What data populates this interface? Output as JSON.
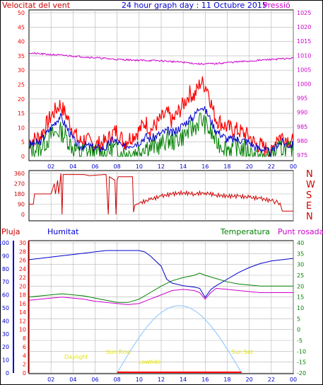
{
  "title": "24 hour graph day : 11 Octubre 2015",
  "colors": {
    "red": "#ff0000",
    "blue": "#0000cc",
    "green": "#008000",
    "magenta": "#cc00cc",
    "darkred": "#cc0000",
    "lightblue": "#99ccff",
    "yellow": "#e6e600",
    "grid": "#b4b4b4"
  },
  "chart_data": [
    {
      "type": "line",
      "name": "wind",
      "left_label": "Velocitat del vent",
      "right_label": "Pressió",
      "x_ticks": [
        "02",
        "04",
        "06",
        "08",
        "10",
        "12",
        "14",
        "16",
        "18",
        "20",
        "22",
        "00"
      ],
      "yleft_ticks": [
        "50",
        "45",
        "40",
        "35",
        "30",
        "25",
        "20",
        "15",
        "10",
        "5",
        "0"
      ],
      "yleft_range": [
        0,
        50
      ],
      "yright_ticks": [
        "1025",
        "1020",
        "1015",
        "1010",
        "1005",
        "1000",
        "995",
        "990",
        "985",
        "980",
        "975"
      ],
      "yright_range": [
        973,
        1026
      ],
      "x_range_hours": [
        0,
        24
      ],
      "gust_points": [
        [
          0,
          5
        ],
        [
          1,
          7
        ],
        [
          2,
          14
        ],
        [
          2.8,
          18
        ],
        [
          3.3,
          15
        ],
        [
          4,
          9
        ],
        [
          4.6,
          5
        ],
        [
          5,
          6
        ],
        [
          6,
          4
        ],
        [
          7,
          5
        ],
        [
          7.6,
          8
        ],
        [
          8,
          9
        ],
        [
          8.6,
          5
        ],
        [
          9,
          6
        ],
        [
          10,
          9
        ],
        [
          10.6,
          12
        ],
        [
          11,
          9
        ],
        [
          12,
          13
        ],
        [
          12.6,
          15
        ],
        [
          13,
          12
        ],
        [
          14,
          18
        ],
        [
          14.6,
          22
        ],
        [
          15,
          21
        ],
        [
          15.6,
          26
        ],
        [
          16.2,
          24
        ],
        [
          16.7,
          16
        ],
        [
          17,
          13
        ],
        [
          18,
          10
        ],
        [
          19,
          9
        ],
        [
          20,
          7
        ],
        [
          20.6,
          4
        ],
        [
          21,
          4
        ],
        [
          22,
          1
        ],
        [
          22.5,
          7
        ],
        [
          23,
          7
        ],
        [
          23.5,
          6
        ],
        [
          24,
          5
        ]
      ],
      "avg_points": [
        [
          0,
          4
        ],
        [
          1,
          5
        ],
        [
          2,
          10
        ],
        [
          2.8,
          14
        ],
        [
          3.3,
          11
        ],
        [
          4,
          6
        ],
        [
          4.6,
          3
        ],
        [
          5,
          4
        ],
        [
          6,
          3
        ],
        [
          7,
          3
        ],
        [
          7.6,
          6
        ],
        [
          8,
          5
        ],
        [
          8.6,
          3
        ],
        [
          9,
          4
        ],
        [
          10,
          5
        ],
        [
          10.6,
          7
        ],
        [
          11,
          6
        ],
        [
          12,
          8
        ],
        [
          12.6,
          9
        ],
        [
          13,
          8
        ],
        [
          14,
          11
        ],
        [
          14.6,
          13
        ],
        [
          15,
          14
        ],
        [
          15.6,
          18
        ],
        [
          16.2,
          15
        ],
        [
          16.7,
          11
        ],
        [
          17,
          9
        ],
        [
          18,
          6
        ],
        [
          19,
          6
        ],
        [
          20,
          5
        ],
        [
          20.6,
          3
        ],
        [
          21,
          3
        ],
        [
          22,
          1
        ],
        [
          22.5,
          4
        ],
        [
          23,
          5
        ],
        [
          23.5,
          4
        ],
        [
          24,
          4
        ]
      ],
      "low_points": [
        [
          0,
          2
        ],
        [
          1,
          3
        ],
        [
          2,
          7
        ],
        [
          2.8,
          9
        ],
        [
          3.3,
          7
        ],
        [
          4,
          3
        ],
        [
          4.6,
          1
        ],
        [
          5,
          2
        ],
        [
          6,
          1
        ],
        [
          7,
          1
        ],
        [
          7.6,
          3
        ],
        [
          8,
          2
        ],
        [
          8.6,
          1
        ],
        [
          9,
          1
        ],
        [
          10,
          2
        ],
        [
          10.6,
          4
        ],
        [
          11,
          3
        ],
        [
          12,
          4
        ],
        [
          12.6,
          6
        ],
        [
          13,
          5
        ],
        [
          14,
          7
        ],
        [
          14.6,
          9
        ],
        [
          15,
          10
        ],
        [
          15.6,
          13
        ],
        [
          16.2,
          10
        ],
        [
          16.7,
          7
        ],
        [
          17,
          5
        ],
        [
          18,
          3
        ],
        [
          19,
          3
        ],
        [
          20,
          2
        ],
        [
          20.6,
          0
        ],
        [
          21,
          0
        ],
        [
          22,
          0
        ],
        [
          22.5,
          2
        ],
        [
          23,
          3
        ],
        [
          23.5,
          2
        ],
        [
          24,
          2
        ]
      ],
      "pressure_points": [
        [
          0,
          1010.8
        ],
        [
          2,
          1010.3
        ],
        [
          4,
          1009.8
        ],
        [
          6,
          1009.2
        ],
        [
          8,
          1008.6
        ],
        [
          10,
          1008.3
        ],
        [
          12,
          1008.1
        ],
        [
          14,
          1007.6
        ],
        [
          15.5,
          1007.0
        ],
        [
          17,
          1007.1
        ],
        [
          18,
          1007.5
        ],
        [
          20,
          1008.0
        ],
        [
          22,
          1008.6
        ],
        [
          24,
          1009.0
        ]
      ]
    },
    {
      "type": "line",
      "name": "direction",
      "right_label_letters": [
        "N",
        "W",
        "S",
        "E",
        "N"
      ],
      "yleft_ticks": [
        "360",
        "270",
        "180",
        "90",
        "0"
      ],
      "yleft_range": [
        0,
        360
      ],
      "points": [
        [
          0,
          90
        ],
        [
          0.4,
          90
        ],
        [
          0.5,
          180
        ],
        [
          1.5,
          180
        ],
        [
          2,
          180
        ],
        [
          2.3,
          270
        ],
        [
          2.4,
          180
        ],
        [
          2.6,
          300
        ],
        [
          2.7,
          180
        ],
        [
          2.9,
          360
        ],
        [
          3,
          0
        ],
        [
          3.1,
          350
        ],
        [
          5,
          350
        ],
        [
          5.5,
          340
        ],
        [
          6.8,
          350
        ],
        [
          7,
          350
        ],
        [
          7.2,
          0
        ],
        [
          7.3,
          330
        ],
        [
          7.8,
          300
        ],
        [
          7.9,
          0
        ],
        [
          8,
          300
        ],
        [
          8.1,
          330
        ],
        [
          9,
          330
        ],
        [
          9.4,
          330
        ],
        [
          9.5,
          20
        ],
        [
          9.6,
          80
        ],
        [
          10,
          100
        ],
        [
          11,
          130
        ],
        [
          12,
          160
        ],
        [
          13,
          180
        ],
        [
          14,
          190
        ],
        [
          15,
          180
        ],
        [
          16,
          190
        ],
        [
          17,
          170
        ],
        [
          18,
          160
        ],
        [
          19,
          160
        ],
        [
          20,
          150
        ],
        [
          21,
          140
        ],
        [
          22,
          120
        ],
        [
          22.8,
          100
        ],
        [
          23,
          30
        ],
        [
          24,
          30
        ]
      ]
    },
    {
      "type": "line",
      "name": "climate",
      "labels": {
        "rain": "Pluja",
        "humidity": "Humitat",
        "temperature": "Temperatura",
        "dewpoint": "Punt rosada",
        "sunrise": "Sun Rise",
        "sunset": "Sun Set",
        "daylight": "Daylight",
        "lowtide": "Lowtide"
      },
      "humidity_ticks": [
        "100",
        "90",
        "80",
        "70",
        "60",
        "50",
        "40",
        "30",
        "20",
        "10",
        "0"
      ],
      "rain_ticks": [
        "30",
        "28",
        "26",
        "24",
        "22",
        "20",
        "18",
        "16",
        "14",
        "12",
        "10",
        "8",
        "6",
        "4",
        "2",
        "0"
      ],
      "temp_ticks": [
        "40",
        "35",
        "30",
        "25",
        "20",
        "15",
        "10",
        "5",
        "0",
        "-5",
        "-10",
        "-15",
        "-20"
      ],
      "humidity_range": [
        0,
        100
      ],
      "temp_range": [
        -20,
        40
      ],
      "humidity_points": [
        [
          0,
          87
        ],
        [
          1,
          88
        ],
        [
          2,
          89
        ],
        [
          3,
          90
        ],
        [
          4,
          91
        ],
        [
          5,
          92
        ],
        [
          6,
          93
        ],
        [
          7,
          94
        ],
        [
          8,
          94
        ],
        [
          9,
          94
        ],
        [
          10,
          94
        ],
        [
          10.5,
          93
        ],
        [
          11,
          90
        ],
        [
          12,
          82
        ],
        [
          12.5,
          72
        ],
        [
          13,
          69
        ],
        [
          14,
          67
        ],
        [
          15,
          66
        ],
        [
          15.5,
          65
        ],
        [
          16,
          58
        ],
        [
          16.5,
          64
        ],
        [
          17,
          67
        ],
        [
          18,
          72
        ],
        [
          19,
          77
        ],
        [
          20,
          81
        ],
        [
          21,
          84
        ],
        [
          22,
          86
        ],
        [
          23,
          87
        ],
        [
          24,
          88
        ]
      ],
      "temp_points": [
        [
          0,
          15
        ],
        [
          1,
          15.5
        ],
        [
          2,
          16
        ],
        [
          3,
          16.5
        ],
        [
          4,
          16
        ],
        [
          5,
          15.5
        ],
        [
          6,
          14.5
        ],
        [
          7,
          13.5
        ],
        [
          8,
          12.5
        ],
        [
          9,
          12.5
        ],
        [
          10,
          14
        ],
        [
          11,
          17
        ],
        [
          12,
          20
        ],
        [
          13,
          22.5
        ],
        [
          14,
          24
        ],
        [
          15,
          25
        ],
        [
          15.5,
          26
        ],
        [
          16,
          25
        ],
        [
          17,
          23.5
        ],
        [
          18,
          22
        ],
        [
          19,
          21
        ],
        [
          20,
          20.5
        ],
        [
          21,
          20
        ],
        [
          22,
          20
        ],
        [
          23,
          20
        ],
        [
          24,
          20
        ]
      ],
      "dewpoint_points": [
        [
          0,
          13.5
        ],
        [
          1,
          14
        ],
        [
          2,
          14.5
        ],
        [
          3,
          15
        ],
        [
          4,
          14.5
        ],
        [
          5,
          14
        ],
        [
          6,
          13
        ],
        [
          7,
          12.5
        ],
        [
          8,
          12
        ],
        [
          9,
          11.5
        ],
        [
          10,
          12
        ],
        [
          11,
          14
        ],
        [
          12,
          16
        ],
        [
          13,
          18
        ],
        [
          14,
          18.5
        ],
        [
          15,
          18
        ],
        [
          15.5,
          17
        ],
        [
          16,
          14
        ],
        [
          16.5,
          17
        ],
        [
          17,
          19
        ],
        [
          18,
          18.5
        ],
        [
          19,
          18
        ],
        [
          20,
          17.5
        ],
        [
          21,
          17
        ],
        [
          22,
          17
        ],
        [
          23,
          17
        ],
        [
          24,
          17
        ]
      ],
      "sun_curve_peak_temp": 11,
      "sunrise_hour": 8,
      "sunset_hour": 19.3,
      "rain_values": []
    }
  ]
}
